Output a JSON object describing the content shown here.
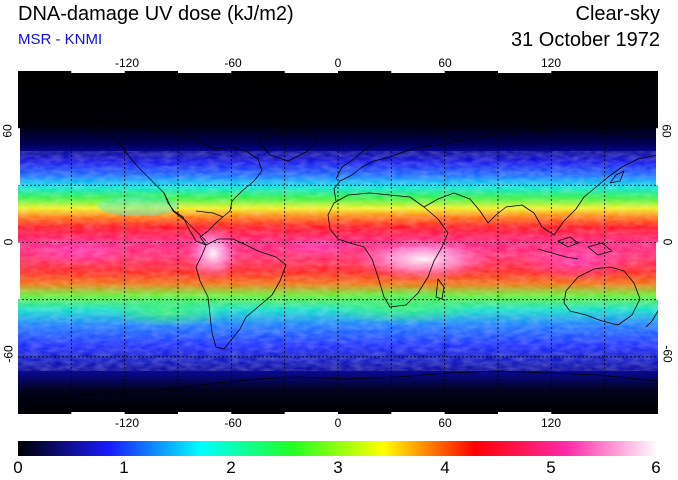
{
  "header": {
    "title": "DNA-damage UV dose (kJ/m2)",
    "source": "MSR - KNMI",
    "sky_condition": "Clear-sky",
    "date": "31 October 1972"
  },
  "map": {
    "projection": "equirectangular",
    "lon_range": [
      -180,
      180
    ],
    "lat_range": [
      -90,
      90
    ],
    "gridlines": "dashed, every 30 degrees",
    "lon_tick_labels": [
      "-120",
      "-60",
      "0",
      "60",
      "120"
    ],
    "lat_tick_labels": [
      "60",
      "0",
      "-60"
    ],
    "coastlines": true
  },
  "colorbar": {
    "tick_labels": [
      "0",
      "1",
      "2",
      "3",
      "4",
      "5",
      "6"
    ],
    "colors": [
      "#000000",
      "#1a1aff",
      "#00ffff",
      "#22ff22",
      "#ffff00",
      "#ff0000",
      "#ff2aa8",
      "#ffffff"
    ]
  }
}
